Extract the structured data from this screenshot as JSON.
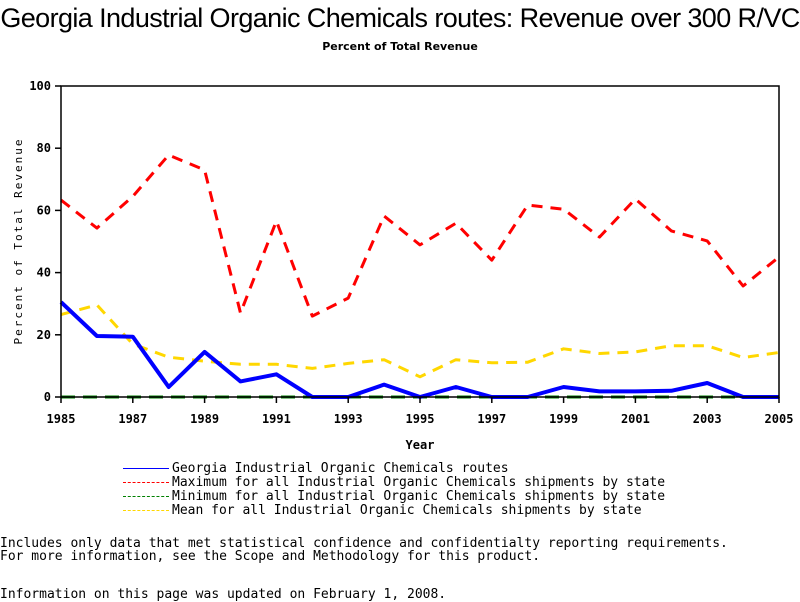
{
  "chart_data": {
    "type": "line",
    "title": "Georgia Industrial Organic Chemicals routes: Revenue over 300 R/VC",
    "subtitle": "Percent of Total Revenue",
    "xlabel": "Year",
    "ylabel": "Percent of Total Revenue",
    "xlim": [
      1985,
      2005
    ],
    "ylim": [
      0,
      100
    ],
    "x_ticks": [
      "1985",
      "1987",
      "1989",
      "1991",
      "1993",
      "1995",
      "1997",
      "1999",
      "2001",
      "2003",
      "2005"
    ],
    "y_ticks": [
      "0",
      "20",
      "40",
      "60",
      "80",
      "100"
    ],
    "x": [
      1985,
      1986,
      1987,
      1988,
      1989,
      1990,
      1991,
      1992,
      1993,
      1994,
      1995,
      1996,
      1997,
      1998,
      1999,
      2000,
      2001,
      2002,
      2003,
      2004,
      2005
    ],
    "grid": false,
    "legend_position": "bottom",
    "series": [
      {
        "name": "Georgia Industrial Organic Chemicals routes",
        "color": "#0000ff",
        "style": "solid",
        "values": [
          30.5,
          19.6,
          19.4,
          3.2,
          14.5,
          5,
          7.3,
          0,
          0,
          4,
          0,
          3.2,
          0,
          0,
          3.2,
          1.8,
          1.8,
          2,
          4.5,
          0,
          0
        ]
      },
      {
        "name": "Maximum for all Industrial Organic Chemicals shipments by state",
        "color": "#ff0000",
        "style": "dashed",
        "values": [
          63.3,
          54.3,
          64.5,
          77.8,
          73,
          27,
          56.6,
          26,
          31.8,
          58.2,
          48.9,
          55.9,
          44,
          61.7,
          60.4,
          51.4,
          63.7,
          53.4,
          50.2,
          35.7,
          45
        ]
      },
      {
        "name": "Minimum for all Industrial Organic Chemicals shipments by state",
        "color": "#008000",
        "style": "dashed",
        "values": [
          0,
          0,
          0,
          0,
          0,
          0,
          0,
          0,
          0,
          0,
          0,
          0,
          0,
          0,
          0,
          0,
          0,
          0,
          0,
          0,
          0
        ]
      },
      {
        "name": "Mean for all Industrial Organic Chemicals shipments by state",
        "color": "#ffd700",
        "style": "dashed",
        "values": [
          26.5,
          29.6,
          17,
          12.8,
          11.5,
          10.5,
          10.5,
          9.2,
          10.8,
          12,
          6.5,
          12,
          11,
          11.2,
          15.5,
          14,
          14.5,
          16.5,
          16.5,
          12.7,
          14.3
        ]
      }
    ]
  },
  "footnotes": {
    "line1": "Includes only data that met statistical confidence and confidentialty reporting requirements.",
    "line2": "For more information, see the Scope and Methodology for this product.",
    "updated": "Information on this page was updated on February 1, 2008."
  }
}
